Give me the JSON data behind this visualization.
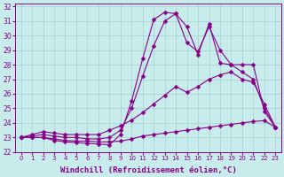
{
  "background_color": "#c8ecec",
  "grid_color": "#aad4d4",
  "line_color": "#880088",
  "marker": "D",
  "marker_size": 2.5,
  "xlabel": "Windchill (Refroidissement éolien,°C)",
  "xlabel_fontsize": 6.5,
  "xlim": [
    -0.5,
    23.5
  ],
  "ylim": [
    22,
    32.2
  ],
  "yticks": [
    22,
    23,
    24,
    25,
    26,
    27,
    28,
    29,
    30,
    31,
    32
  ],
  "xticks": [
    0,
    1,
    2,
    3,
    4,
    5,
    6,
    7,
    8,
    9,
    10,
    11,
    12,
    13,
    14,
    15,
    16,
    17,
    18,
    19,
    20,
    21,
    22,
    23
  ],
  "series": [
    {
      "x": [
        0,
        1,
        2,
        3,
        4,
        5,
        6,
        7,
        8,
        9,
        10,
        11,
        12,
        13,
        14,
        15,
        16,
        17,
        18,
        19,
        20,
        21,
        22,
        23
      ],
      "y": [
        23.0,
        23.0,
        23.0,
        22.8,
        22.7,
        22.65,
        22.6,
        22.55,
        22.5,
        23.2,
        25.5,
        28.4,
        31.1,
        31.6,
        31.5,
        30.6,
        28.7,
        30.8,
        28.1,
        28.0,
        28.0,
        28.0,
        24.8,
        23.7
      ]
    },
    {
      "x": [
        0,
        1,
        2,
        3,
        4,
        5,
        6,
        7,
        8,
        9,
        10,
        11,
        12,
        13,
        14,
        15,
        16,
        17,
        18,
        19,
        20,
        21,
        22,
        23
      ],
      "y": [
        23.0,
        23.1,
        23.2,
        23.1,
        23.0,
        23.0,
        22.9,
        22.9,
        23.0,
        23.5,
        25.0,
        27.2,
        29.3,
        31.0,
        31.5,
        29.5,
        28.9,
        30.6,
        29.0,
        28.0,
        27.5,
        27.0,
        25.0,
        23.7
      ]
    },
    {
      "x": [
        0,
        1,
        2,
        3,
        4,
        5,
        6,
        7,
        8,
        9,
        10,
        11,
        12,
        13,
        14,
        15,
        16,
        17,
        18,
        19,
        20,
        21,
        22,
        23
      ],
      "y": [
        23.0,
        23.2,
        23.4,
        23.3,
        23.2,
        23.2,
        23.2,
        23.2,
        23.5,
        23.8,
        24.2,
        24.7,
        25.3,
        25.9,
        26.5,
        26.1,
        26.5,
        27.0,
        27.3,
        27.5,
        27.0,
        26.8,
        25.3,
        23.7
      ]
    },
    {
      "x": [
        0,
        1,
        2,
        3,
        4,
        5,
        6,
        7,
        8,
        9,
        10,
        11,
        12,
        13,
        14,
        15,
        16,
        17,
        18,
        19,
        20,
        21,
        22,
        23
      ],
      "y": [
        23.0,
        23.0,
        23.0,
        22.9,
        22.8,
        22.75,
        22.75,
        22.7,
        22.7,
        22.75,
        22.9,
        23.1,
        23.2,
        23.3,
        23.4,
        23.5,
        23.6,
        23.7,
        23.8,
        23.9,
        24.0,
        24.1,
        24.15,
        23.7
      ]
    }
  ]
}
